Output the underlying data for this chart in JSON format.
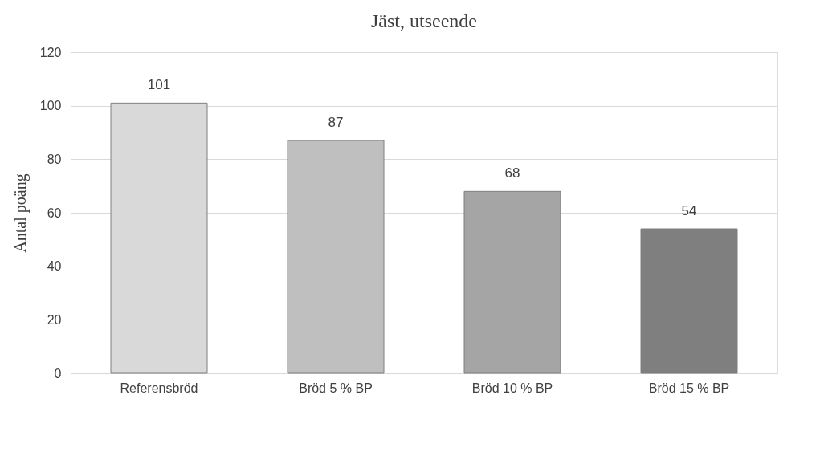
{
  "chart_data": {
    "type": "bar",
    "title": "Jäst, utseende",
    "ylabel": "Antal poäng",
    "categories": [
      "Referensbröd",
      "Bröd 5 % BP",
      "Bröd 10 % BP",
      "Bröd 15 % BP"
    ],
    "values": [
      101,
      87,
      68,
      54
    ],
    "colors": [
      "#d9d9d9",
      "#bfbfbf",
      "#a5a5a5",
      "#7f7f7f"
    ],
    "ylim": [
      0,
      120
    ],
    "yticks": [
      0,
      20,
      40,
      60,
      80,
      100,
      120
    ],
    "grid": "y",
    "data_labels": true
  }
}
